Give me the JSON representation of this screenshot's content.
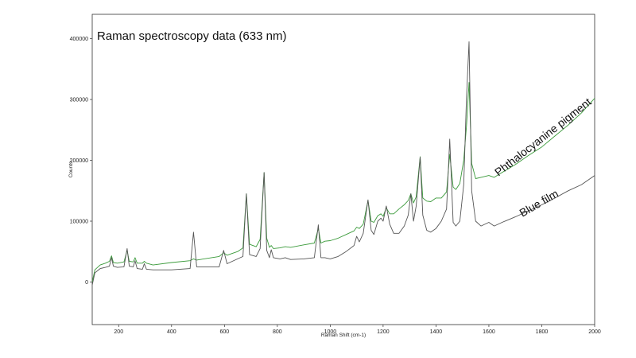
{
  "chart_data": {
    "type": "line",
    "title": "Raman spectroscopy data (633 nm)",
    "xlabel": "Raman Shift (cm-1)",
    "ylabel": "Counts",
    "xlim": [
      100,
      2000
    ],
    "ylim": [
      -70000,
      440000
    ],
    "x_ticks": [
      200,
      400,
      600,
      800,
      1000,
      1200,
      1400,
      1600,
      1800,
      2000
    ],
    "y_ticks": [
      0,
      100000,
      200000,
      300000,
      400000
    ],
    "grid": false,
    "legend": "none",
    "series": [
      {
        "name": "Phthalocyanine pigment",
        "color": "#3a9a3a",
        "label_angle": -38,
        "x": [
          100,
          110,
          130,
          150,
          165,
          173,
          180,
          195,
          220,
          232,
          240,
          255,
          262,
          270,
          290,
          297,
          305,
          330,
          400,
          470,
          483,
          495,
          580,
          597,
          610,
          650,
          670,
          683,
          695,
          720,
          735,
          750,
          760,
          770,
          777,
          785,
          810,
          830,
          850,
          900,
          940,
          955,
          965,
          980,
          1000,
          1030,
          1060,
          1090,
          1100,
          1110,
          1125,
          1143,
          1155,
          1165,
          1180,
          1192,
          1200,
          1212,
          1225,
          1240,
          1260,
          1280,
          1295,
          1305,
          1315,
          1325,
          1340,
          1350,
          1365,
          1380,
          1400,
          1420,
          1440,
          1452,
          1465,
          1475,
          1490,
          1505,
          1515,
          1525,
          1535,
          1550,
          1570,
          1600,
          1620,
          1650,
          1700,
          1750,
          1800,
          1850,
          1900,
          1950,
          2000
        ],
        "y": [
          0,
          20000,
          28000,
          31000,
          34000,
          43000,
          32000,
          31000,
          33000,
          52000,
          34000,
          33000,
          40000,
          31000,
          31000,
          34000,
          31000,
          28000,
          32000,
          35000,
          38000,
          36000,
          42000,
          48000,
          44000,
          50000,
          56000,
          145000,
          62000,
          58000,
          70000,
          180000,
          72000,
          57000,
          60000,
          55000,
          56000,
          58000,
          57000,
          61000,
          64000,
          88000,
          64000,
          67000,
          68000,
          72000,
          78000,
          84000,
          90000,
          88000,
          95000,
          134000,
          100000,
          98000,
          109000,
          112000,
          108000,
          122000,
          112000,
          112000,
          120000,
          127000,
          134000,
          145000,
          130000,
          140000,
          206000,
          138000,
          133000,
          132000,
          138000,
          138000,
          148000,
          210000,
          156000,
          152000,
          162000,
          200000,
          255000,
          328000,
          195000,
          170000,
          172000,
          175000,
          172000,
          180000,
          193000,
          208000,
          222000,
          240000,
          258000,
          278000,
          302000
        ]
      },
      {
        "name": "Blue film",
        "color": "#555555",
        "label_angle": -30,
        "x": [
          100,
          110,
          130,
          150,
          165,
          173,
          180,
          195,
          220,
          232,
          240,
          255,
          262,
          270,
          290,
          297,
          305,
          330,
          400,
          470,
          483,
          495,
          580,
          597,
          610,
          650,
          670,
          683,
          695,
          720,
          735,
          750,
          760,
          770,
          777,
          785,
          810,
          830,
          850,
          900,
          940,
          955,
          965,
          980,
          1000,
          1030,
          1060,
          1090,
          1100,
          1110,
          1125,
          1143,
          1155,
          1165,
          1180,
          1192,
          1200,
          1212,
          1225,
          1240,
          1260,
          1280,
          1295,
          1305,
          1315,
          1325,
          1340,
          1350,
          1365,
          1380,
          1400,
          1420,
          1440,
          1452,
          1465,
          1475,
          1490,
          1505,
          1515,
          1525,
          1535,
          1550,
          1570,
          1600,
          1620,
          1650,
          1700,
          1750,
          1800,
          1850,
          1900,
          1950,
          2000
        ],
        "y": [
          -5000,
          15000,
          22000,
          24000,
          26000,
          40000,
          26000,
          24000,
          25000,
          55000,
          26000,
          25000,
          35000,
          22000,
          21000,
          30000,
          21000,
          20000,
          20000,
          22000,
          82000,
          25000,
          25000,
          52000,
          30000,
          38000,
          42000,
          145000,
          45000,
          42000,
          55000,
          180000,
          52000,
          40000,
          53000,
          40000,
          38000,
          40000,
          37000,
          38000,
          40000,
          94000,
          40000,
          40000,
          38000,
          42000,
          50000,
          60000,
          75000,
          66000,
          80000,
          135000,
          85000,
          78000,
          100000,
          105000,
          100000,
          125000,
          95000,
          80000,
          80000,
          92000,
          110000,
          145000,
          100000,
          125000,
          205000,
          110000,
          85000,
          82000,
          88000,
          100000,
          120000,
          235000,
          98000,
          92000,
          100000,
          160000,
          300000,
          395000,
          150000,
          100000,
          92000,
          98000,
          92000,
          98000,
          107000,
          117000,
          127000,
          138000,
          150000,
          160000,
          175000
        ]
      }
    ]
  }
}
